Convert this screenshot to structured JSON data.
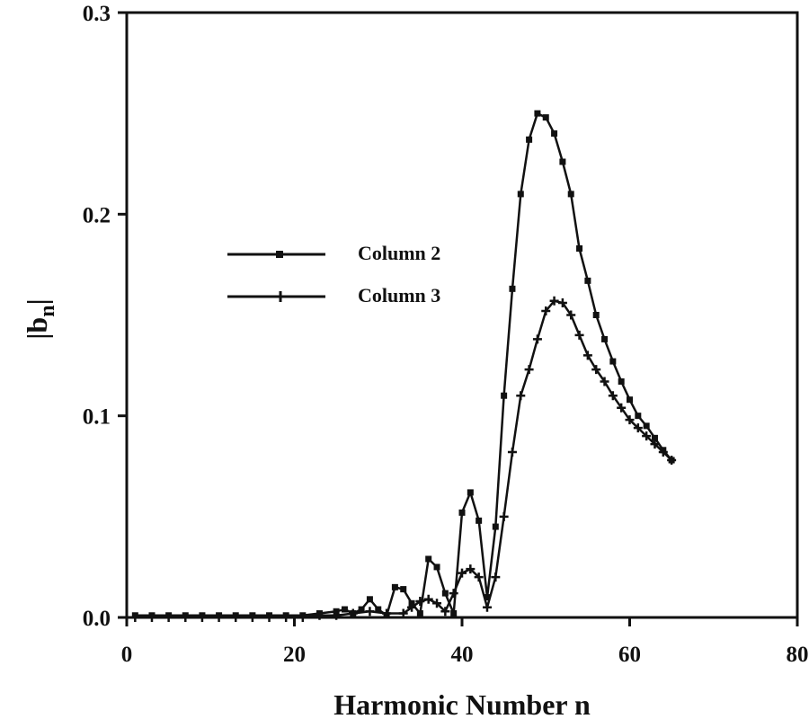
{
  "chart_data": {
    "type": "line",
    "xlabel": "Harmonic Number n",
    "ylabel": "|b",
    "ylabel_sub": "n",
    "ylabel_close": "|",
    "xlim": [
      0,
      80
    ],
    "ylim": [
      0,
      0.3
    ],
    "x_ticks": [
      "0",
      "20",
      "40",
      "60",
      "80"
    ],
    "y_ticks": [
      "0.0",
      "0.1",
      "0.2",
      "0.3"
    ],
    "legend_position": "center-left",
    "series": [
      {
        "name": "Column 2",
        "marker": "square",
        "color": "#111111",
        "points": [
          [
            1,
            0.001
          ],
          [
            3,
            0.001
          ],
          [
            5,
            0.001
          ],
          [
            7,
            0.001
          ],
          [
            9,
            0.001
          ],
          [
            11,
            0.001
          ],
          [
            13,
            0.001
          ],
          [
            15,
            0.001
          ],
          [
            17,
            0.001
          ],
          [
            19,
            0.001
          ],
          [
            21,
            0.001
          ],
          [
            23,
            0.002
          ],
          [
            25,
            0.003
          ],
          [
            26,
            0.004
          ],
          [
            27,
            0.002
          ],
          [
            28,
            0.004
          ],
          [
            29,
            0.009
          ],
          [
            30,
            0.004
          ],
          [
            31,
            0.001
          ],
          [
            32,
            0.015
          ],
          [
            33,
            0.014
          ],
          [
            34,
            0.007
          ],
          [
            35,
            0.002
          ],
          [
            36,
            0.029
          ],
          [
            37,
            0.025
          ],
          [
            38,
            0.012
          ],
          [
            39,
            0.002
          ],
          [
            40,
            0.052
          ],
          [
            41,
            0.062
          ],
          [
            42,
            0.048
          ],
          [
            43,
            0.01
          ],
          [
            44,
            0.045
          ],
          [
            45,
            0.11
          ],
          [
            46,
            0.163
          ],
          [
            47,
            0.21
          ],
          [
            48,
            0.237
          ],
          [
            49,
            0.25
          ],
          [
            50,
            0.248
          ],
          [
            51,
            0.24
          ],
          [
            52,
            0.226
          ],
          [
            53,
            0.21
          ],
          [
            54,
            0.183
          ],
          [
            55,
            0.167
          ],
          [
            56,
            0.15
          ],
          [
            57,
            0.138
          ],
          [
            58,
            0.127
          ],
          [
            59,
            0.117
          ],
          [
            60,
            0.108
          ],
          [
            61,
            0.1
          ],
          [
            62,
            0.095
          ],
          [
            63,
            0.089
          ],
          [
            64,
            0.083
          ],
          [
            65,
            0.078
          ]
        ]
      },
      {
        "name": "Column 3",
        "marker": "plus",
        "color": "#111111",
        "points": [
          [
            1,
            0.0
          ],
          [
            3,
            0.0
          ],
          [
            5,
            0.0
          ],
          [
            7,
            0.0
          ],
          [
            9,
            0.0
          ],
          [
            11,
            0.0
          ],
          [
            13,
            0.0
          ],
          [
            15,
            0.0
          ],
          [
            17,
            0.0
          ],
          [
            19,
            0.0
          ],
          [
            21,
            0.0
          ],
          [
            23,
            0.001
          ],
          [
            25,
            0.001
          ],
          [
            27,
            0.002
          ],
          [
            29,
            0.003
          ],
          [
            31,
            0.002
          ],
          [
            33,
            0.002
          ],
          [
            34,
            0.005
          ],
          [
            35,
            0.008
          ],
          [
            36,
            0.009
          ],
          [
            37,
            0.007
          ],
          [
            38,
            0.003
          ],
          [
            39,
            0.012
          ],
          [
            40,
            0.022
          ],
          [
            41,
            0.024
          ],
          [
            42,
            0.02
          ],
          [
            43,
            0.005
          ],
          [
            44,
            0.02
          ],
          [
            45,
            0.05
          ],
          [
            46,
            0.082
          ],
          [
            47,
            0.11
          ],
          [
            48,
            0.123
          ],
          [
            49,
            0.138
          ],
          [
            50,
            0.152
          ],
          [
            51,
            0.157
          ],
          [
            52,
            0.156
          ],
          [
            53,
            0.15
          ],
          [
            54,
            0.14
          ],
          [
            55,
            0.13
          ],
          [
            56,
            0.123
          ],
          [
            57,
            0.117
          ],
          [
            58,
            0.11
          ],
          [
            59,
            0.104
          ],
          [
            60,
            0.098
          ],
          [
            61,
            0.094
          ],
          [
            62,
            0.09
          ],
          [
            63,
            0.086
          ],
          [
            64,
            0.082
          ],
          [
            65,
            0.078
          ]
        ]
      }
    ]
  }
}
